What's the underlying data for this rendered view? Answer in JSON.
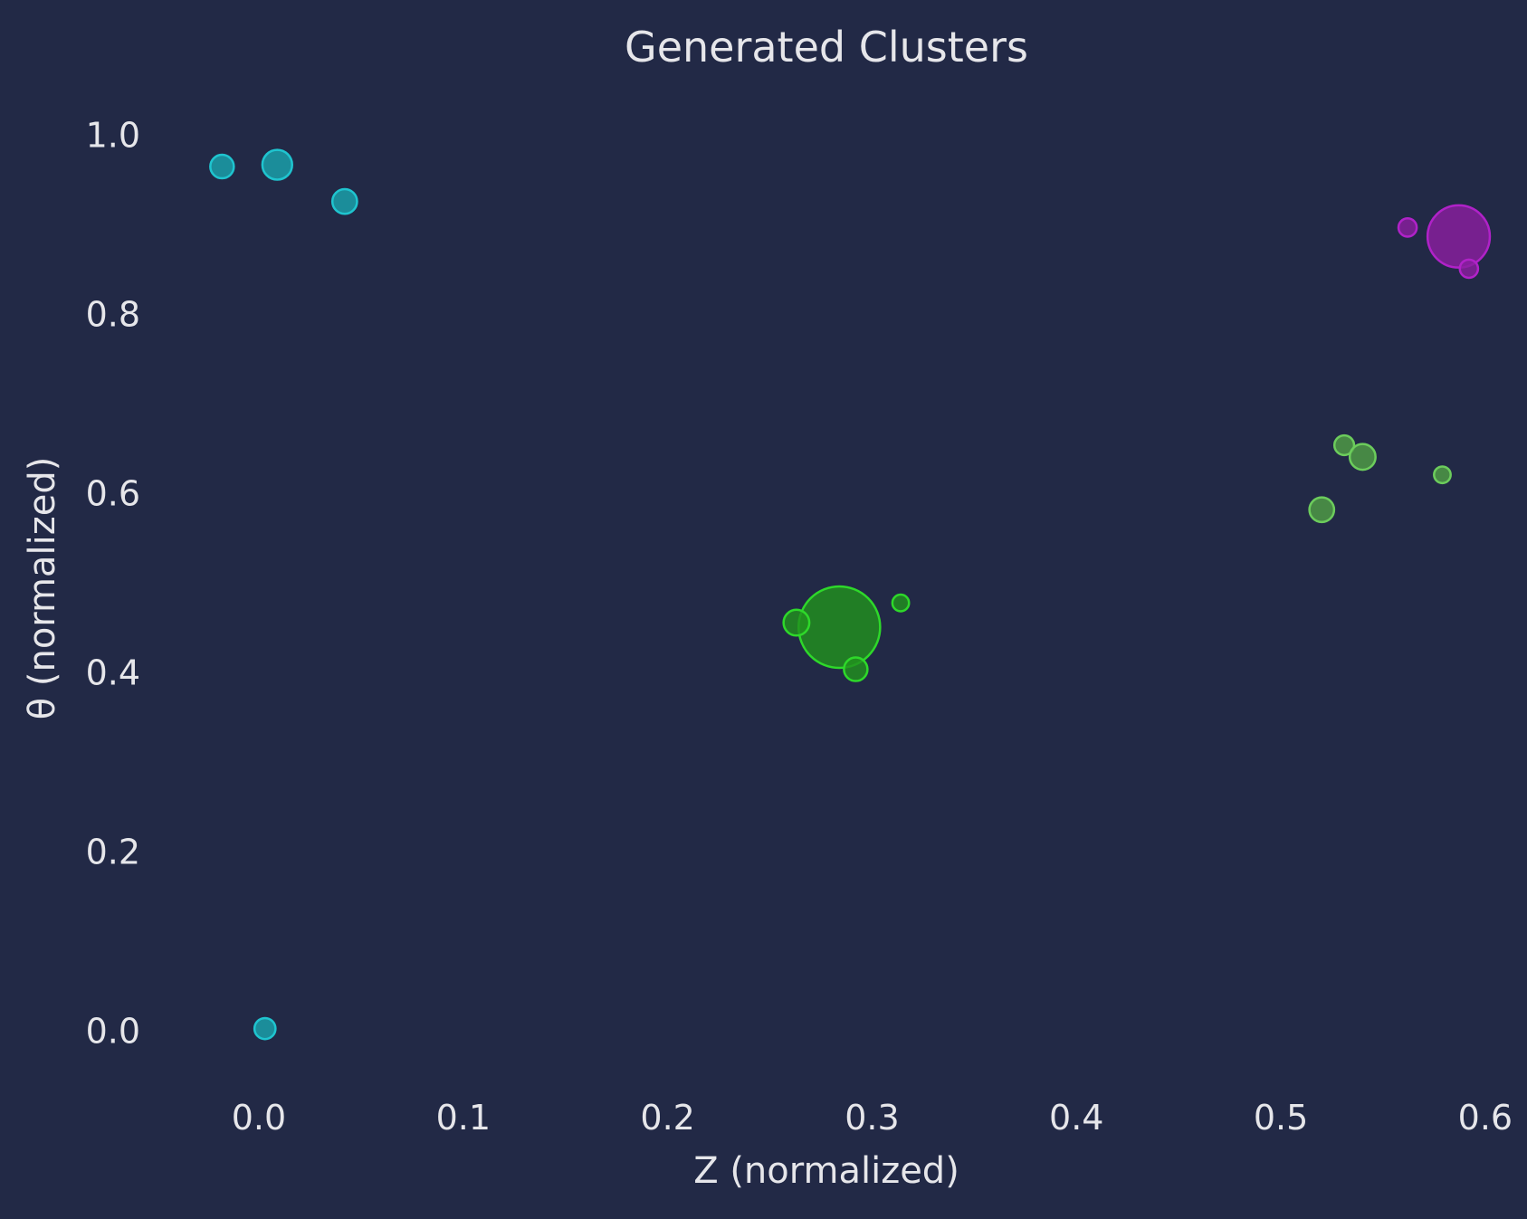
{
  "chart_data": {
    "type": "scatter",
    "title": "Generated Clusters",
    "xlabel": "Z (normalized)",
    "ylabel": "θ (normalized)",
    "xlim": [
      -0.058,
      0.612
    ],
    "ylim": [
      -0.056,
      1.062
    ],
    "xticks": [
      "0.0",
      "0.1",
      "0.2",
      "0.3",
      "0.4",
      "0.5",
      "0.6"
    ],
    "yticks": [
      "0.0",
      "0.2",
      "0.4",
      "0.6",
      "0.8",
      "1.0"
    ],
    "xtick_values": [
      0.0,
      0.1,
      0.2,
      0.3,
      0.4,
      0.5,
      0.6
    ],
    "ytick_values": [
      0.0,
      0.2,
      0.4,
      0.6,
      0.8,
      1.0
    ],
    "grid": false,
    "legend": "none",
    "series": [
      {
        "color": "#1aa3ad",
        "edge_color": "#1fc4cf",
        "points": [
          {
            "x": -0.018,
            "y": 0.965,
            "size": 1.0
          },
          {
            "x": 0.009,
            "y": 0.967,
            "size": 1.6
          },
          {
            "x": 0.042,
            "y": 0.926,
            "size": 1.1
          },
          {
            "x": 0.003,
            "y": 0.003,
            "size": 0.8
          }
        ]
      },
      {
        "color": "#8a1fa0",
        "edge_color": "#b022c8",
        "points": [
          {
            "x": 0.587,
            "y": 0.887,
            "size": 7.0
          },
          {
            "x": 0.562,
            "y": 0.897,
            "size": 0.6
          },
          {
            "x": 0.592,
            "y": 0.851,
            "size": 0.6
          }
        ]
      },
      {
        "color": "#4f9e45",
        "edge_color": "#6ccc5c",
        "points": [
          {
            "x": 0.531,
            "y": 0.654,
            "size": 0.7
          },
          {
            "x": 0.54,
            "y": 0.641,
            "size": 1.2
          },
          {
            "x": 0.579,
            "y": 0.621,
            "size": 0.5
          },
          {
            "x": 0.52,
            "y": 0.582,
            "size": 1.1
          }
        ]
      },
      {
        "color": "#21911f",
        "edge_color": "#2ed82a",
        "points": [
          {
            "x": 0.284,
            "y": 0.451,
            "size": 12.0
          },
          {
            "x": 0.263,
            "y": 0.456,
            "size": 1.2
          },
          {
            "x": 0.314,
            "y": 0.478,
            "size": 0.5
          },
          {
            "x": 0.292,
            "y": 0.404,
            "size": 1.0
          }
        ]
      }
    ]
  }
}
